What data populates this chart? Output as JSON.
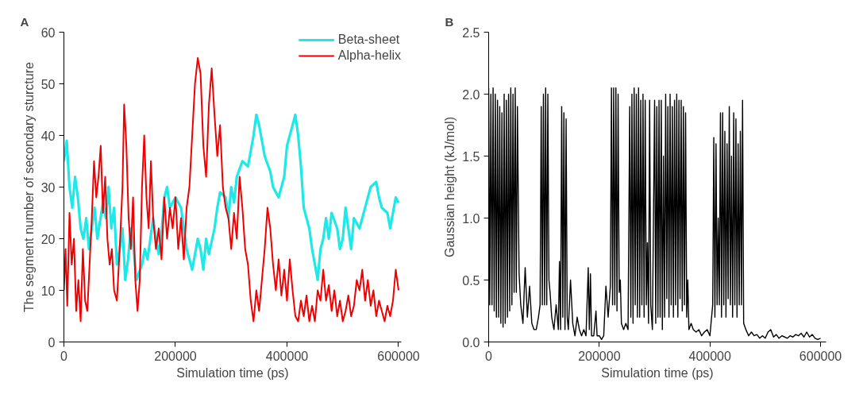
{
  "chart_data": [
    {
      "type": "line",
      "title": "A",
      "xlabel": "Simulation time (ps)",
      "ylabel": "The segment number of secondary sturcture",
      "xlim": [
        0,
        605000
      ],
      "ylim": [
        0,
        60
      ],
      "xticks": [
        0,
        200000,
        400000,
        600000
      ],
      "yticks": [
        0,
        10,
        20,
        30,
        40,
        50,
        60
      ],
      "grid": false,
      "legend": "top right",
      "line_style": "solid",
      "marker": "none",
      "series": [
        {
          "name": "Beta-sheet",
          "color": "#1ee8e8",
          "x": [
            0,
            5000,
            10000,
            15000,
            20000,
            25000,
            30000,
            35000,
            40000,
            45000,
            50000,
            55000,
            60000,
            70000,
            75000,
            80000,
            85000,
            90000,
            95000,
            100000,
            105000,
            110000,
            115000,
            120000,
            125000,
            130000,
            140000,
            145000,
            150000,
            160000,
            165000,
            170000,
            175000,
            180000,
            185000,
            190000,
            200000,
            210000,
            215000,
            220000,
            230000,
            240000,
            245000,
            250000,
            255000,
            260000,
            270000,
            275000,
            280000,
            290000,
            295000,
            300000,
            305000,
            310000,
            320000,
            330000,
            340000,
            345000,
            350000,
            360000,
            370000,
            375000,
            385000,
            395000,
            400000,
            410000,
            415000,
            420000,
            425000,
            430000,
            440000,
            445000,
            450000,
            455000,
            460000,
            465000,
            470000,
            475000,
            480000,
            490000,
            495000,
            500000,
            505000,
            510000,
            515000,
            520000,
            530000,
            540000,
            550000,
            560000,
            565000,
            570000,
            580000,
            585000,
            590000,
            595000,
            600000
          ],
          "values": [
            35,
            39,
            30,
            26,
            32,
            28,
            22,
            20,
            24,
            18,
            22,
            26,
            20,
            27,
            24,
            30,
            22,
            26,
            15,
            18,
            22,
            12,
            16,
            22,
            18,
            12,
            15,
            18,
            16,
            24,
            20,
            17,
            21,
            28,
            30,
            26,
            28,
            26,
            22,
            18,
            14,
            20,
            18,
            14,
            20,
            17,
            22,
            26,
            29,
            28,
            24,
            30,
            27,
            32,
            35,
            34,
            40,
            44,
            42,
            36,
            33,
            30,
            28,
            32,
            38,
            42,
            44,
            40,
            34,
            26,
            22,
            18,
            15,
            12,
            18,
            20,
            24,
            20,
            25,
            22,
            18,
            20,
            26,
            22,
            18,
            24,
            22,
            26,
            30,
            31,
            28,
            26,
            25,
            22,
            25,
            28,
            27
          ]
        },
        {
          "name": "Alpha-helix",
          "color": "#f00000",
          "x": [
            0,
            3000,
            6000,
            10000,
            14000,
            18000,
            22000,
            26000,
            30000,
            34000,
            38000,
            42000,
            46000,
            50000,
            54000,
            58000,
            62000,
            66000,
            70000,
            74000,
            78000,
            82000,
            86000,
            90000,
            95000,
            100000,
            105000,
            108000,
            112000,
            116000,
            120000,
            124000,
            128000,
            132000,
            136000,
            140000,
            144000,
            148000,
            152000,
            156000,
            160000,
            165000,
            170000,
            175000,
            180000,
            185000,
            190000,
            195000,
            200000,
            205000,
            210000,
            215000,
            220000,
            225000,
            230000,
            235000,
            240000,
            245000,
            250000,
            255000,
            260000,
            265000,
            270000,
            275000,
            280000,
            285000,
            290000,
            295000,
            300000,
            305000,
            310000,
            315000,
            320000,
            325000,
            330000,
            335000,
            340000,
            345000,
            350000,
            355000,
            360000,
            365000,
            370000,
            375000,
            380000,
            385000,
            390000,
            395000,
            400000,
            405000,
            410000,
            415000,
            420000,
            425000,
            430000,
            435000,
            440000,
            445000,
            450000,
            455000,
            460000,
            465000,
            470000,
            475000,
            480000,
            485000,
            490000,
            495000,
            500000,
            505000,
            510000,
            515000,
            520000,
            525000,
            530000,
            535000,
            540000,
            545000,
            550000,
            555000,
            560000,
            565000,
            570000,
            575000,
            580000,
            585000,
            590000,
            595000,
            600000
          ],
          "values": [
            10,
            18,
            7,
            25,
            15,
            20,
            6,
            12,
            4,
            18,
            8,
            6,
            15,
            24,
            35,
            28,
            32,
            38,
            25,
            32,
            20,
            15,
            18,
            10,
            8,
            18,
            30,
            46,
            38,
            24,
            18,
            28,
            12,
            6,
            12,
            30,
            40,
            28,
            22,
            35,
            24,
            18,
            22,
            16,
            28,
            20,
            26,
            22,
            28,
            18,
            24,
            16,
            26,
            30,
            40,
            50,
            55,
            52,
            38,
            32,
            46,
            53,
            44,
            36,
            42,
            30,
            26,
            24,
            18,
            25,
            20,
            32,
            26,
            18,
            15,
            8,
            4,
            10,
            6,
            12,
            18,
            26,
            22,
            15,
            10,
            16,
            9,
            14,
            8,
            16,
            10,
            5,
            4,
            8,
            5,
            9,
            4,
            7,
            4,
            10,
            8,
            14,
            8,
            11,
            6,
            10,
            5,
            8,
            4,
            6,
            9,
            5,
            7,
            12,
            10,
            14,
            8,
            12,
            7,
            10,
            5,
            8,
            6,
            4,
            7,
            5,
            8,
            14,
            10
          ]
        }
      ]
    },
    {
      "type": "line",
      "title": "B",
      "xlabel": "Simulation time (ps)",
      "ylabel": "Gaussian height (kJ/mol)",
      "xlim": [
        0,
        610000
      ],
      "ylim": [
        0,
        2.5
      ],
      "xticks": [
        0,
        200000,
        400000,
        600000
      ],
      "yticks": [
        {
          "value": 0,
          "label": "0.0"
        },
        0.5,
        {
          "value": 1,
          "label": "1.0"
        },
        1.5,
        {
          "value": 2,
          "label": "2.0"
        },
        2.5
      ],
      "grid": false,
      "legend": false,
      "line_style": "solid",
      "marker": "none",
      "series": [
        {
          "color": "#000000",
          "x": [
            0,
            2000,
            4000,
            6000,
            8000,
            10000,
            12000,
            14000,
            16000,
            18000,
            20000,
            22000,
            24000,
            26000,
            28000,
            30000,
            32000,
            34000,
            36000,
            38000,
            40000,
            42000,
            44000,
            46000,
            48000,
            50000,
            52000,
            55000,
            58000,
            62000,
            66000,
            70000,
            74000,
            78000,
            82000,
            86000,
            90000,
            93000,
            95000,
            97000,
            99000,
            101000,
            103000,
            105000,
            107000,
            109000,
            111000,
            114000,
            118000,
            122000,
            126000,
            128000,
            130000,
            132000,
            134000,
            136000,
            138000,
            140000,
            142000,
            144000,
            148000,
            152000,
            156000,
            160000,
            164000,
            168000,
            172000,
            176000,
            180000,
            182000,
            184000,
            186000,
            190000,
            194000,
            196000,
            200000,
            204000,
            208000,
            212000,
            216000,
            220000,
            222000,
            224000,
            226000,
            228000,
            230000,
            232000,
            234000,
            236000,
            238000,
            240000,
            244000,
            248000,
            252000,
            255000,
            257000,
            259000,
            261000,
            263000,
            265000,
            267000,
            269000,
            271000,
            273000,
            275000,
            277000,
            279000,
            281000,
            283000,
            285000,
            287000,
            289000,
            291000,
            293000,
            296000,
            300000,
            302000,
            304000,
            306000,
            308000,
            310000,
            312000,
            314000,
            316000,
            318000,
            320000,
            322000,
            324000,
            326000,
            328000,
            330000,
            332000,
            334000,
            336000,
            338000,
            340000,
            342000,
            344000,
            346000,
            348000,
            350000,
            352000,
            354000,
            356000,
            358000,
            360000,
            362000,
            366000,
            370000,
            375000,
            380000,
            385000,
            390000,
            395000,
            400000,
            405000,
            407000,
            409000,
            411000,
            413000,
            415000,
            417000,
            419000,
            421000,
            423000,
            425000,
            427000,
            429000,
            431000,
            433000,
            435000,
            437000,
            439000,
            441000,
            443000,
            445000,
            447000,
            449000,
            451000,
            453000,
            455000,
            457000,
            459000,
            461000,
            465000,
            470000,
            475000,
            480000,
            485000,
            490000,
            495000,
            500000,
            505000,
            510000,
            515000,
            520000,
            525000,
            530000,
            535000,
            540000,
            545000,
            550000,
            555000,
            560000,
            565000,
            570000,
            575000,
            580000,
            585000,
            590000,
            595000,
            600000
          ],
          "values": [
            2.05,
            0.3,
            2.0,
            0.3,
            2.05,
            0.25,
            2.0,
            0.2,
            1.95,
            0.2,
            1.9,
            0.15,
            1.85,
            0.12,
            2.0,
            0.15,
            1.95,
            0.2,
            2.0,
            0.25,
            2.05,
            0.3,
            2.0,
            0.4,
            2.05,
            0.4,
            1.9,
            0.55,
            0.3,
            0.15,
            0.6,
            0.2,
            0.45,
            0.15,
            0.1,
            0.1,
            0.2,
            0.3,
            1.9,
            0.3,
            2.0,
            0.3,
            2.05,
            0.3,
            2.0,
            0.5,
            0.4,
            0.2,
            0.1,
            0.3,
            0.1,
            0.65,
            0.1,
            1.9,
            0.2,
            1.85,
            0.1,
            1.8,
            0.2,
            0.1,
            0.5,
            0.15,
            0.05,
            0.2,
            0.1,
            0.05,
            0.1,
            0.05,
            0.6,
            0.1,
            0.55,
            0.05,
            0.05,
            0.25,
            0.05,
            0.05,
            0.02,
            0.05,
            0.45,
            0.2,
            0.45,
            2.05,
            0.3,
            2.05,
            0.3,
            2.05,
            0.25,
            2.0,
            0.4,
            0.5,
            0.15,
            0.1,
            0.15,
            0.1,
            1.9,
            0.2,
            2.0,
            0.15,
            2.05,
            0.3,
            2.0,
            0.2,
            2.05,
            0.2,
            1.95,
            0.3,
            2.0,
            0.2,
            1.95,
            0.3,
            0.8,
            0.15,
            1.95,
            0.3,
            0.1,
            1.95,
            0.15,
            1.9,
            0.2,
            1.95,
            0.2,
            1.95,
            0.1,
            1.5,
            0.2,
            2.0,
            0.35,
            1.9,
            0.2,
            2.0,
            0.3,
            1.9,
            0.2,
            1.95,
            0.3,
            2.0,
            0.2,
            1.95,
            0.35,
            1.95,
            0.25,
            1.9,
            0.3,
            1.85,
            0.2,
            0.5,
            0.1,
            0.15,
            0.1,
            0.08,
            0.1,
            0.05,
            0.08,
            0.1,
            0.05,
            0.3,
            1.65,
            0.2,
            1.6,
            0.3,
            1.0,
            0.3,
            1.85,
            0.2,
            1.85,
            0.3,
            1.7,
            0.2,
            1.6,
            0.35,
            1.9,
            0.3,
            1.5,
            0.2,
            1.85,
            0.3,
            1.8,
            0.2,
            1.6,
            0.3,
            1.7,
            0.3,
            1.95,
            0.15,
            0.1,
            0.05,
            0.08,
            0.05,
            0.06,
            0.03,
            0.05,
            0.03,
            0.08,
            0.1,
            0.04,
            0.06,
            0.03,
            0.05,
            0.04,
            0.03,
            0.05,
            0.04,
            0.06,
            0.05,
            0.07,
            0.04,
            0.08,
            0.04,
            0.06,
            0.03,
            0.02,
            0.03
          ]
        }
      ]
    }
  ]
}
